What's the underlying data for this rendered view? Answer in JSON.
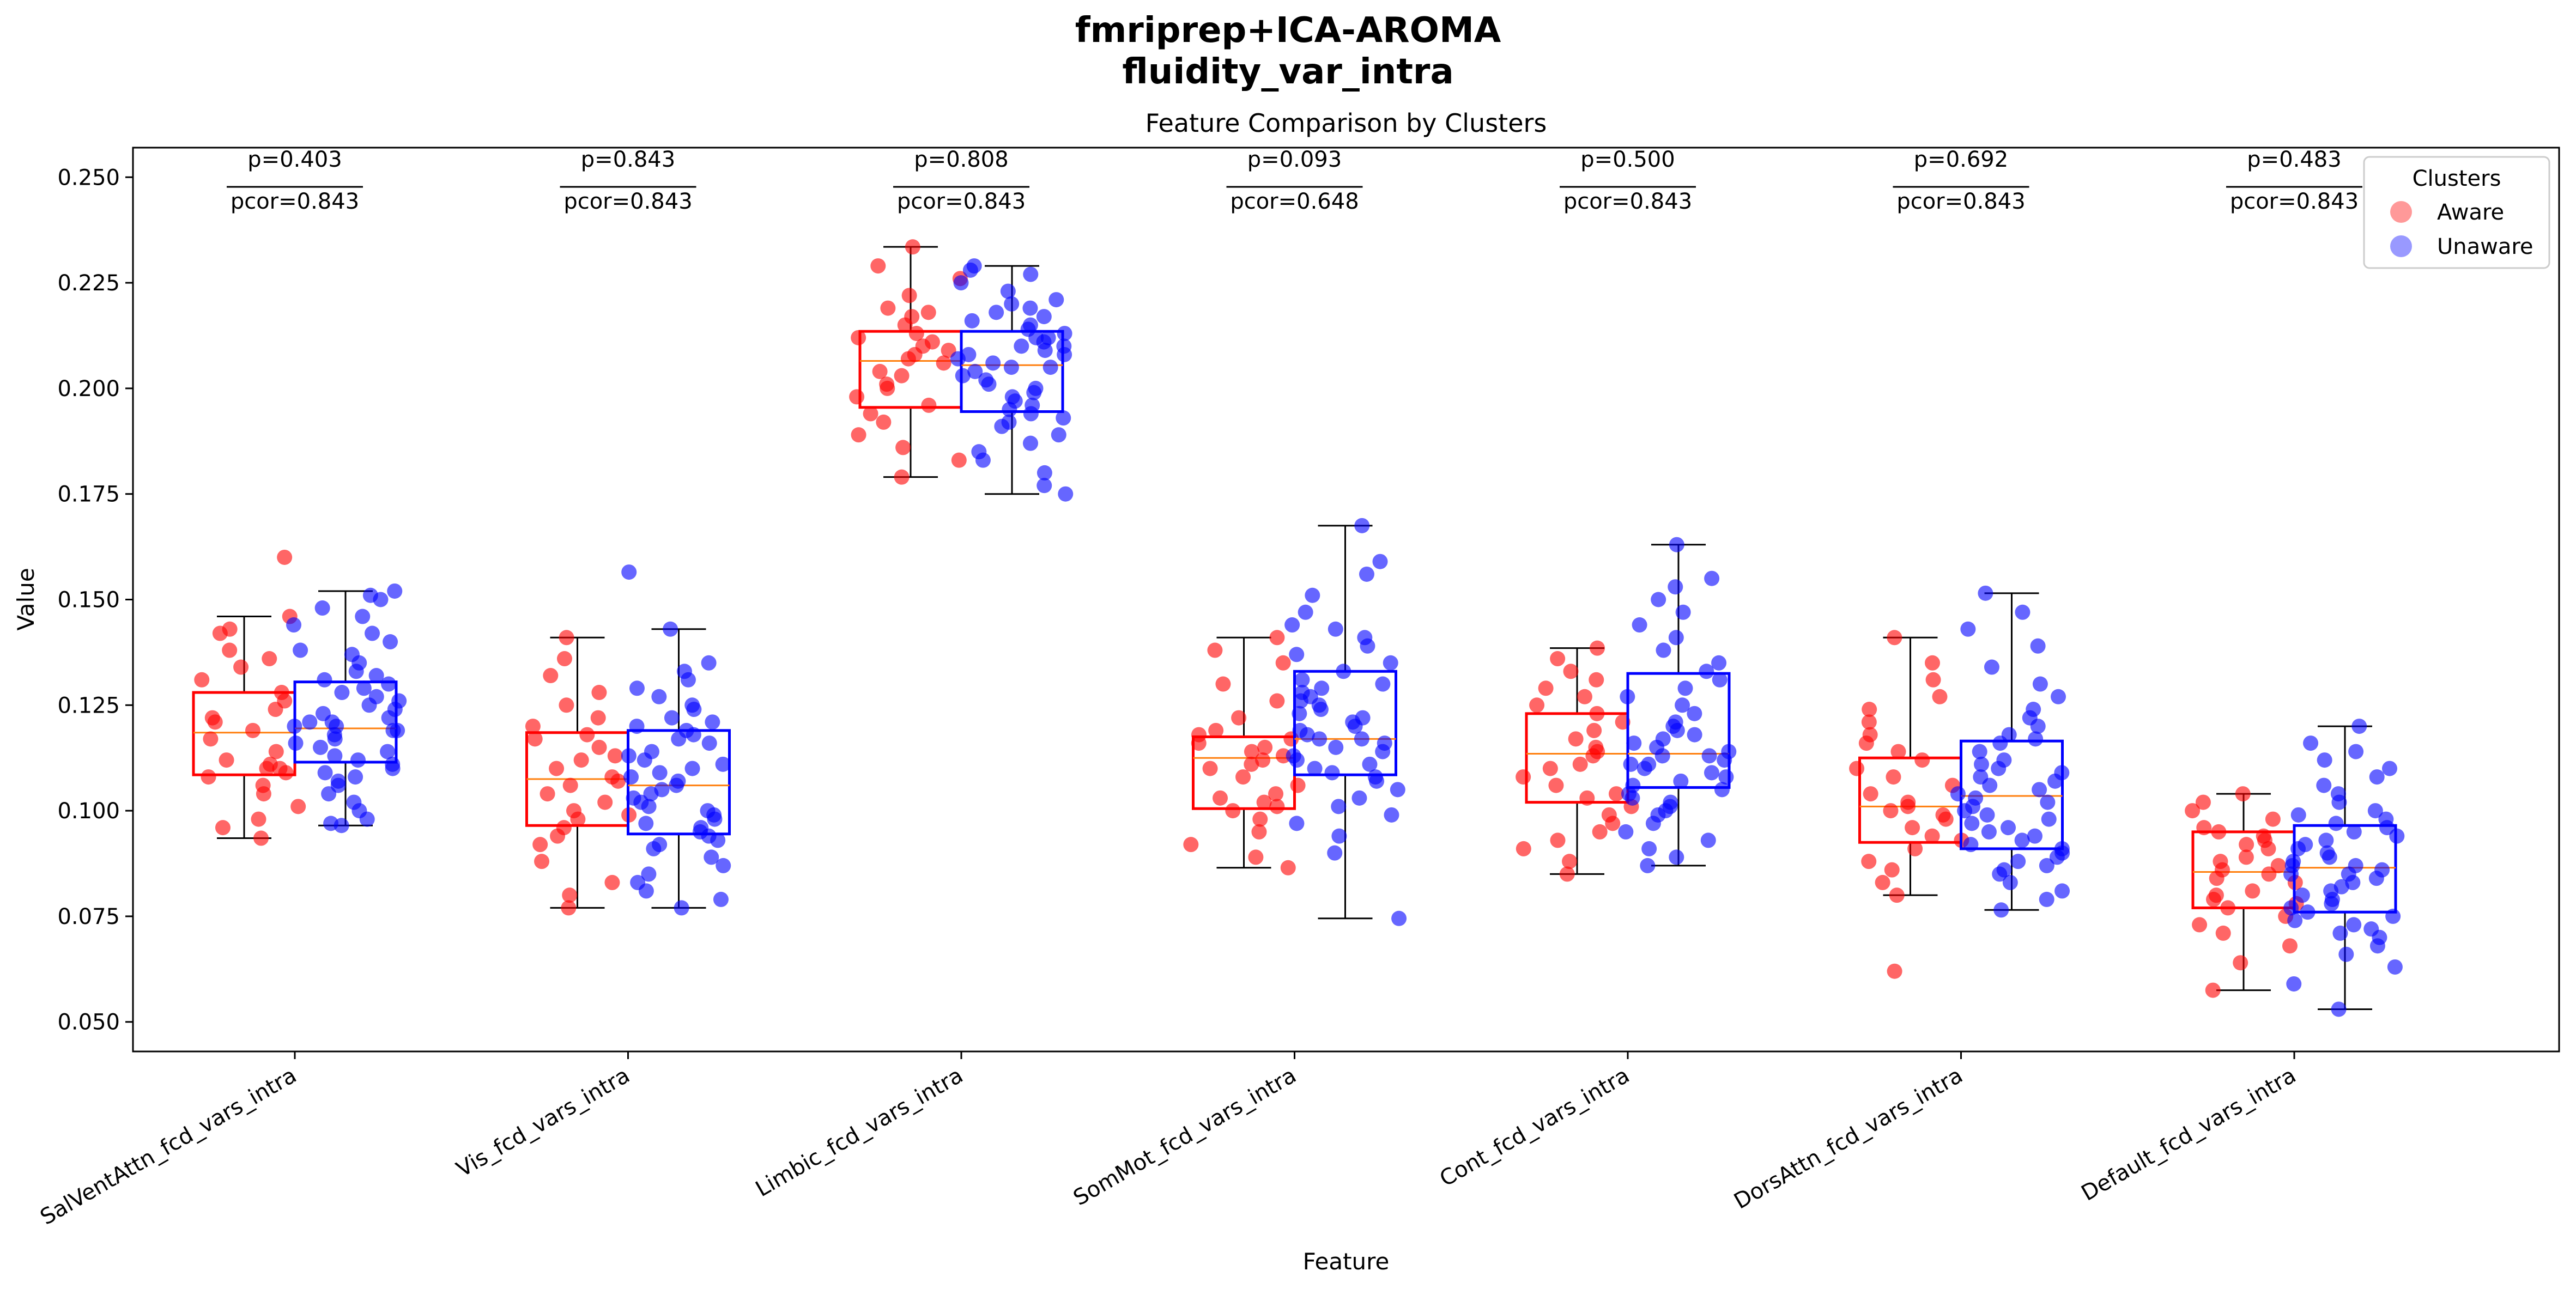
{
  "figure": {
    "suptitle_line1": "fmriprep+ICA-AROMA",
    "suptitle_line2": "fluidity_var_intra"
  },
  "chart_data": {
    "type": "box",
    "title": "Feature Comparison by Clusters",
    "xlabel": "Feature",
    "ylabel": "Value",
    "ylim": [
      0.043,
      0.257
    ],
    "yticks": [
      0.05,
      0.075,
      0.1,
      0.125,
      0.15,
      0.175,
      0.2,
      0.225,
      0.25
    ],
    "ytick_labels": [
      "0.050",
      "0.075",
      "0.100",
      "0.125",
      "0.150",
      "0.175",
      "0.200",
      "0.225",
      "0.250"
    ],
    "grid": false,
    "legend": {
      "title": "Clusters",
      "placement": "top-right",
      "entries": [
        "Aware",
        "Unaware"
      ]
    },
    "series_colors": {
      "Aware": "#ff0000",
      "Unaware": "#0000ff"
    },
    "median_color": "#ff7f0e",
    "categories": [
      "SalVentAttn_fcd_vars_intra",
      "Vis_fcd_vars_intra",
      "Limbic_fcd_vars_intra",
      "SomMot_fcd_vars_intra",
      "Cont_fcd_vars_intra",
      "DorsAttn_fcd_vars_intra",
      "Default_fcd_vars_intra"
    ],
    "annotations": [
      {
        "p": "p=0.403",
        "pcor": "pcor=0.843"
      },
      {
        "p": "p=0.843",
        "pcor": "pcor=0.843"
      },
      {
        "p": "p=0.808",
        "pcor": "pcor=0.843"
      },
      {
        "p": "p=0.093",
        "pcor": "pcor=0.648"
      },
      {
        "p": "p=0.500",
        "pcor": "pcor=0.843"
      },
      {
        "p": "p=0.692",
        "pcor": "pcor=0.843"
      },
      {
        "p": "p=0.483",
        "pcor": "pcor=0.843"
      }
    ],
    "series": [
      {
        "name": "Aware",
        "boxes": [
          {
            "whislo": 0.0935,
            "q1": 0.1085,
            "med": 0.1185,
            "q3": 0.128,
            "whishi": 0.146
          },
          {
            "whislo": 0.077,
            "q1": 0.0965,
            "med": 0.1075,
            "q3": 0.1185,
            "whishi": 0.141
          },
          {
            "whislo": 0.179,
            "q1": 0.1955,
            "med": 0.2065,
            "q3": 0.2135,
            "whishi": 0.2335
          },
          {
            "whislo": 0.0865,
            "q1": 0.1005,
            "med": 0.1125,
            "q3": 0.1175,
            "whishi": 0.141
          },
          {
            "whislo": 0.085,
            "q1": 0.102,
            "med": 0.1135,
            "q3": 0.123,
            "whishi": 0.1385
          },
          {
            "whislo": 0.08,
            "q1": 0.0925,
            "med": 0.101,
            "q3": 0.1125,
            "whishi": 0.141
          },
          {
            "whislo": 0.0575,
            "q1": 0.077,
            "med": 0.0855,
            "q3": 0.095,
            "whishi": 0.104
          }
        ],
        "points": [
          [
            0.0935,
            0.096,
            0.098,
            0.101,
            0.104,
            0.106,
            0.108,
            0.109,
            0.11,
            0.11,
            0.111,
            0.112,
            0.114,
            0.117,
            0.119,
            0.121,
            0.122,
            0.124,
            0.126,
            0.128,
            0.131,
            0.134,
            0.136,
            0.138,
            0.142,
            0.143,
            0.146,
            0.16
          ],
          [
            0.077,
            0.08,
            0.083,
            0.088,
            0.092,
            0.094,
            0.096,
            0.098,
            0.099,
            0.1,
            0.102,
            0.104,
            0.106,
            0.107,
            0.108,
            0.11,
            0.112,
            0.113,
            0.115,
            0.117,
            0.118,
            0.12,
            0.122,
            0.125,
            0.128,
            0.132,
            0.136,
            0.141
          ],
          [
            0.179,
            0.183,
            0.186,
            0.189,
            0.192,
            0.194,
            0.196,
            0.198,
            0.2,
            0.201,
            0.203,
            0.204,
            0.206,
            0.207,
            0.208,
            0.209,
            0.21,
            0.211,
            0.212,
            0.213,
            0.215,
            0.217,
            0.218,
            0.219,
            0.222,
            0.226,
            0.229,
            0.2335
          ],
          [
            0.0865,
            0.089,
            0.092,
            0.095,
            0.098,
            0.1,
            0.101,
            0.102,
            0.103,
            0.104,
            0.106,
            0.108,
            0.11,
            0.111,
            0.112,
            0.113,
            0.114,
            0.115,
            0.116,
            0.117,
            0.118,
            0.119,
            0.122,
            0.126,
            0.13,
            0.135,
            0.138,
            0.141
          ],
          [
            0.085,
            0.088,
            0.091,
            0.093,
            0.095,
            0.097,
            0.099,
            0.101,
            0.103,
            0.104,
            0.106,
            0.108,
            0.11,
            0.111,
            0.113,
            0.114,
            0.115,
            0.117,
            0.119,
            0.121,
            0.123,
            0.125,
            0.127,
            0.129,
            0.131,
            0.133,
            0.136,
            0.1385
          ],
          [
            0.062,
            0.08,
            0.083,
            0.086,
            0.088,
            0.091,
            0.093,
            0.094,
            0.096,
            0.098,
            0.099,
            0.1,
            0.101,
            0.102,
            0.104,
            0.106,
            0.108,
            0.11,
            0.112,
            0.114,
            0.116,
            0.118,
            0.121,
            0.124,
            0.127,
            0.131,
            0.135,
            0.141
          ],
          [
            0.0575,
            0.064,
            0.068,
            0.071,
            0.073,
            0.075,
            0.077,
            0.078,
            0.079,
            0.08,
            0.081,
            0.083,
            0.084,
            0.085,
            0.086,
            0.087,
            0.088,
            0.089,
            0.091,
            0.092,
            0.093,
            0.094,
            0.095,
            0.096,
            0.098,
            0.1,
            0.102,
            0.104
          ]
        ]
      },
      {
        "name": "Unaware",
        "boxes": [
          {
            "whislo": 0.0965,
            "q1": 0.1115,
            "med": 0.1195,
            "q3": 0.1305,
            "whishi": 0.152
          },
          {
            "whislo": 0.077,
            "q1": 0.0945,
            "med": 0.106,
            "q3": 0.119,
            "whishi": 0.143
          },
          {
            "whislo": 0.175,
            "q1": 0.1945,
            "med": 0.2055,
            "q3": 0.2135,
            "whishi": 0.229
          },
          {
            "whislo": 0.0745,
            "q1": 0.1085,
            "med": 0.117,
            "q3": 0.133,
            "whishi": 0.1675
          },
          {
            "whislo": 0.087,
            "q1": 0.1055,
            "med": 0.1135,
            "q3": 0.1325,
            "whishi": 0.163
          },
          {
            "whislo": 0.0765,
            "q1": 0.091,
            "med": 0.1035,
            "q3": 0.1165,
            "whishi": 0.1515
          },
          {
            "whislo": 0.053,
            "q1": 0.076,
            "med": 0.0865,
            "q3": 0.0965,
            "whishi": 0.12
          }
        ],
        "points": [
          [
            0.0965,
            0.097,
            0.098,
            0.1,
            0.102,
            0.104,
            0.106,
            0.107,
            0.108,
            0.109,
            0.11,
            0.111,
            0.112,
            0.113,
            0.114,
            0.115,
            0.116,
            0.117,
            0.118,
            0.119,
            0.119,
            0.12,
            0.12,
            0.121,
            0.121,
            0.122,
            0.123,
            0.124,
            0.125,
            0.126,
            0.127,
            0.128,
            0.129,
            0.13,
            0.131,
            0.132,
            0.133,
            0.135,
            0.137,
            0.138,
            0.14,
            0.142,
            0.144,
            0.146,
            0.148,
            0.15,
            0.151,
            0.152
          ],
          [
            0.077,
            0.079,
            0.081,
            0.083,
            0.085,
            0.087,
            0.089,
            0.091,
            0.092,
            0.093,
            0.094,
            0.095,
            0.096,
            0.097,
            0.098,
            0.099,
            0.1,
            0.101,
            0.102,
            0.103,
            0.104,
            0.105,
            0.106,
            0.107,
            0.108,
            0.109,
            0.11,
            0.111,
            0.112,
            0.113,
            0.114,
            0.116,
            0.117,
            0.118,
            0.119,
            0.12,
            0.121,
            0.122,
            0.124,
            0.125,
            0.127,
            0.129,
            0.131,
            0.133,
            0.135,
            0.143,
            0.1565
          ],
          [
            0.175,
            0.177,
            0.18,
            0.183,
            0.185,
            0.187,
            0.189,
            0.191,
            0.192,
            0.193,
            0.194,
            0.195,
            0.196,
            0.197,
            0.198,
            0.199,
            0.2,
            0.201,
            0.202,
            0.203,
            0.204,
            0.205,
            0.205,
            0.206,
            0.207,
            0.208,
            0.208,
            0.209,
            0.21,
            0.21,
            0.211,
            0.212,
            0.212,
            0.213,
            0.214,
            0.215,
            0.216,
            0.217,
            0.218,
            0.219,
            0.22,
            0.221,
            0.223,
            0.225,
            0.227,
            0.228,
            0.229
          ],
          [
            0.0745,
            0.09,
            0.094,
            0.097,
            0.099,
            0.101,
            0.103,
            0.105,
            0.107,
            0.108,
            0.109,
            0.11,
            0.111,
            0.112,
            0.113,
            0.114,
            0.115,
            0.116,
            0.117,
            0.117,
            0.118,
            0.119,
            0.12,
            0.121,
            0.122,
            0.123,
            0.124,
            0.125,
            0.126,
            0.127,
            0.128,
            0.129,
            0.13,
            0.131,
            0.133,
            0.135,
            0.137,
            0.139,
            0.141,
            0.143,
            0.144,
            0.147,
            0.151,
            0.156,
            0.159,
            0.1675
          ],
          [
            0.087,
            0.089,
            0.091,
            0.093,
            0.095,
            0.097,
            0.099,
            0.1,
            0.101,
            0.102,
            0.103,
            0.104,
            0.105,
            0.106,
            0.107,
            0.108,
            0.109,
            0.11,
            0.111,
            0.111,
            0.112,
            0.113,
            0.113,
            0.114,
            0.115,
            0.116,
            0.117,
            0.118,
            0.119,
            0.12,
            0.121,
            0.123,
            0.125,
            0.127,
            0.129,
            0.131,
            0.133,
            0.135,
            0.138,
            0.141,
            0.144,
            0.147,
            0.15,
            0.153,
            0.155,
            0.163
          ],
          [
            0.0765,
            0.079,
            0.081,
            0.083,
            0.085,
            0.086,
            0.087,
            0.088,
            0.089,
            0.09,
            0.091,
            0.092,
            0.093,
            0.094,
            0.095,
            0.096,
            0.097,
            0.098,
            0.099,
            0.1,
            0.101,
            0.102,
            0.103,
            0.104,
            0.105,
            0.106,
            0.107,
            0.108,
            0.109,
            0.11,
            0.111,
            0.112,
            0.114,
            0.116,
            0.117,
            0.118,
            0.12,
            0.122,
            0.124,
            0.127,
            0.13,
            0.134,
            0.139,
            0.143,
            0.147,
            0.1515
          ],
          [
            0.053,
            0.059,
            0.063,
            0.066,
            0.068,
            0.07,
            0.071,
            0.072,
            0.073,
            0.074,
            0.075,
            0.076,
            0.077,
            0.078,
            0.079,
            0.08,
            0.081,
            0.082,
            0.083,
            0.084,
            0.085,
            0.085,
            0.086,
            0.087,
            0.087,
            0.088,
            0.089,
            0.09,
            0.091,
            0.092,
            0.093,
            0.094,
            0.095,
            0.096,
            0.097,
            0.098,
            0.099,
            0.1,
            0.102,
            0.104,
            0.106,
            0.108,
            0.11,
            0.112,
            0.114,
            0.116,
            0.12
          ]
        ]
      }
    ]
  }
}
